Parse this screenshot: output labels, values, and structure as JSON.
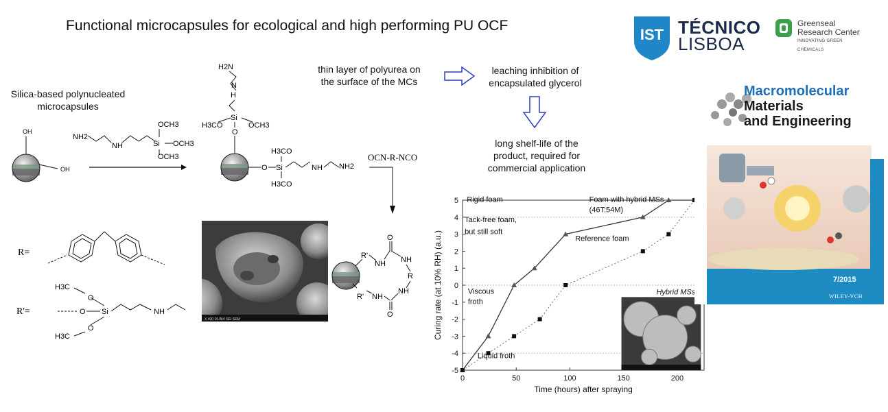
{
  "title": "Functional microcapsules for ecological and high performing PU OCF",
  "logos": {
    "tecnico": {
      "line1": "TÉCNICO",
      "line2": "LISBOA",
      "icon": "ist-shield-icon"
    },
    "greenseal": {
      "line1": "Greenseal",
      "line2": "Research Center",
      "tagline": "INNOVATING GREEN CHEMICALS",
      "icon": "greenseal-icon"
    }
  },
  "left_label": {
    "line1": "Silica-based polynucleated",
    "line2": "microcapsules"
  },
  "flow": {
    "step1": {
      "line1": "thin layer of polyurea on",
      "line2": "the surface of the MCs"
    },
    "step2": {
      "line1": "leaching inhibition of",
      "line2": "encapsulated glycerol"
    },
    "step3": {
      "line1": "long shelf-life of the",
      "line2": "product, required for",
      "line3": "commercial application"
    }
  },
  "scheme": {
    "oh1": "OH",
    "oh2": "OH",
    "reagent": "OCN-R-NCO",
    "r_label": "R=",
    "r_prime_label": "R'=",
    "nh2": "NH2",
    "h2n": "H2N",
    "nh": "NH",
    "h": "H",
    "n": "N",
    "si": "Si",
    "o": "O",
    "och3": "OCH3",
    "h3co": "H3CO",
    "h3c": "H3C",
    "r": "R",
    "r_prime": "R'",
    "sem_scale": "X 400    15.0kV SEI    SEM"
  },
  "cover": {
    "journal_line1": "Macromolecular",
    "journal_line2": "Materials",
    "journal_line3": "and Engineering",
    "issue": "7/2015",
    "publisher": "WILEY-VCH"
  },
  "chart_data": {
    "type": "line",
    "xlabel": "Time (hours) after spraying",
    "ylabel": "Curing rate (at 10% RH) (a.u.)",
    "xlim": [
      0,
      225
    ],
    "ylim": [
      -5,
      5
    ],
    "xticks": [
      0,
      50,
      100,
      150,
      200
    ],
    "yticks": [
      -5,
      -4,
      -3,
      -2,
      -1,
      0,
      1,
      2,
      3,
      4,
      5
    ],
    "series": [
      {
        "name": "Foam with hybrid MSs (46T:54M)",
        "marker": "triangle",
        "style": "solid",
        "x": [
          0,
          24,
          48,
          67,
          96,
          168,
          192,
          216
        ],
        "y": [
          -5,
          -3,
          0,
          1,
          3,
          4,
          5,
          5
        ]
      },
      {
        "name": "Reference foam",
        "marker": "square",
        "style": "dotted",
        "x": [
          0,
          24,
          48,
          72,
          96,
          168,
          192,
          216
        ],
        "y": [
          -5,
          -4,
          -3,
          -2,
          0,
          2,
          3,
          5
        ]
      }
    ],
    "annotations": [
      "Rigid foam",
      "Tack-free foam,",
      "but still soft",
      "Viscous",
      "froth",
      "Liquid froth",
      "Foam with hybrid MSs",
      "(46T:54M)",
      "Reference foam"
    ],
    "inset_label": "Hybrid MSs",
    "grid": "dashed at y = -4, 0, 4"
  }
}
